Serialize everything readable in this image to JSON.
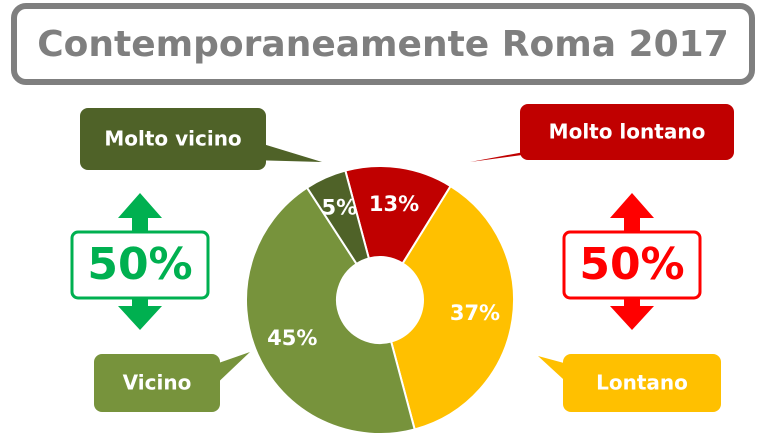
{
  "chart_data": {
    "type": "donut",
    "title": "Contemporaneamente Roma 2017",
    "categories": [
      "Molto lontano",
      "Lontano",
      "Vicino",
      "Molto vicino"
    ],
    "values": [
      13,
      37,
      45,
      5
    ],
    "value_labels": [
      "13%",
      "37%",
      "45%",
      "5%"
    ],
    "colors": [
      "#c00000",
      "#ffc000",
      "#77933c",
      "#4f6228"
    ],
    "annotations": [
      {
        "value": 50,
        "label": "50%",
        "color": "#00b050"
      },
      {
        "value": 50,
        "label": "50%",
        "color": "#ff0000"
      }
    ]
  }
}
